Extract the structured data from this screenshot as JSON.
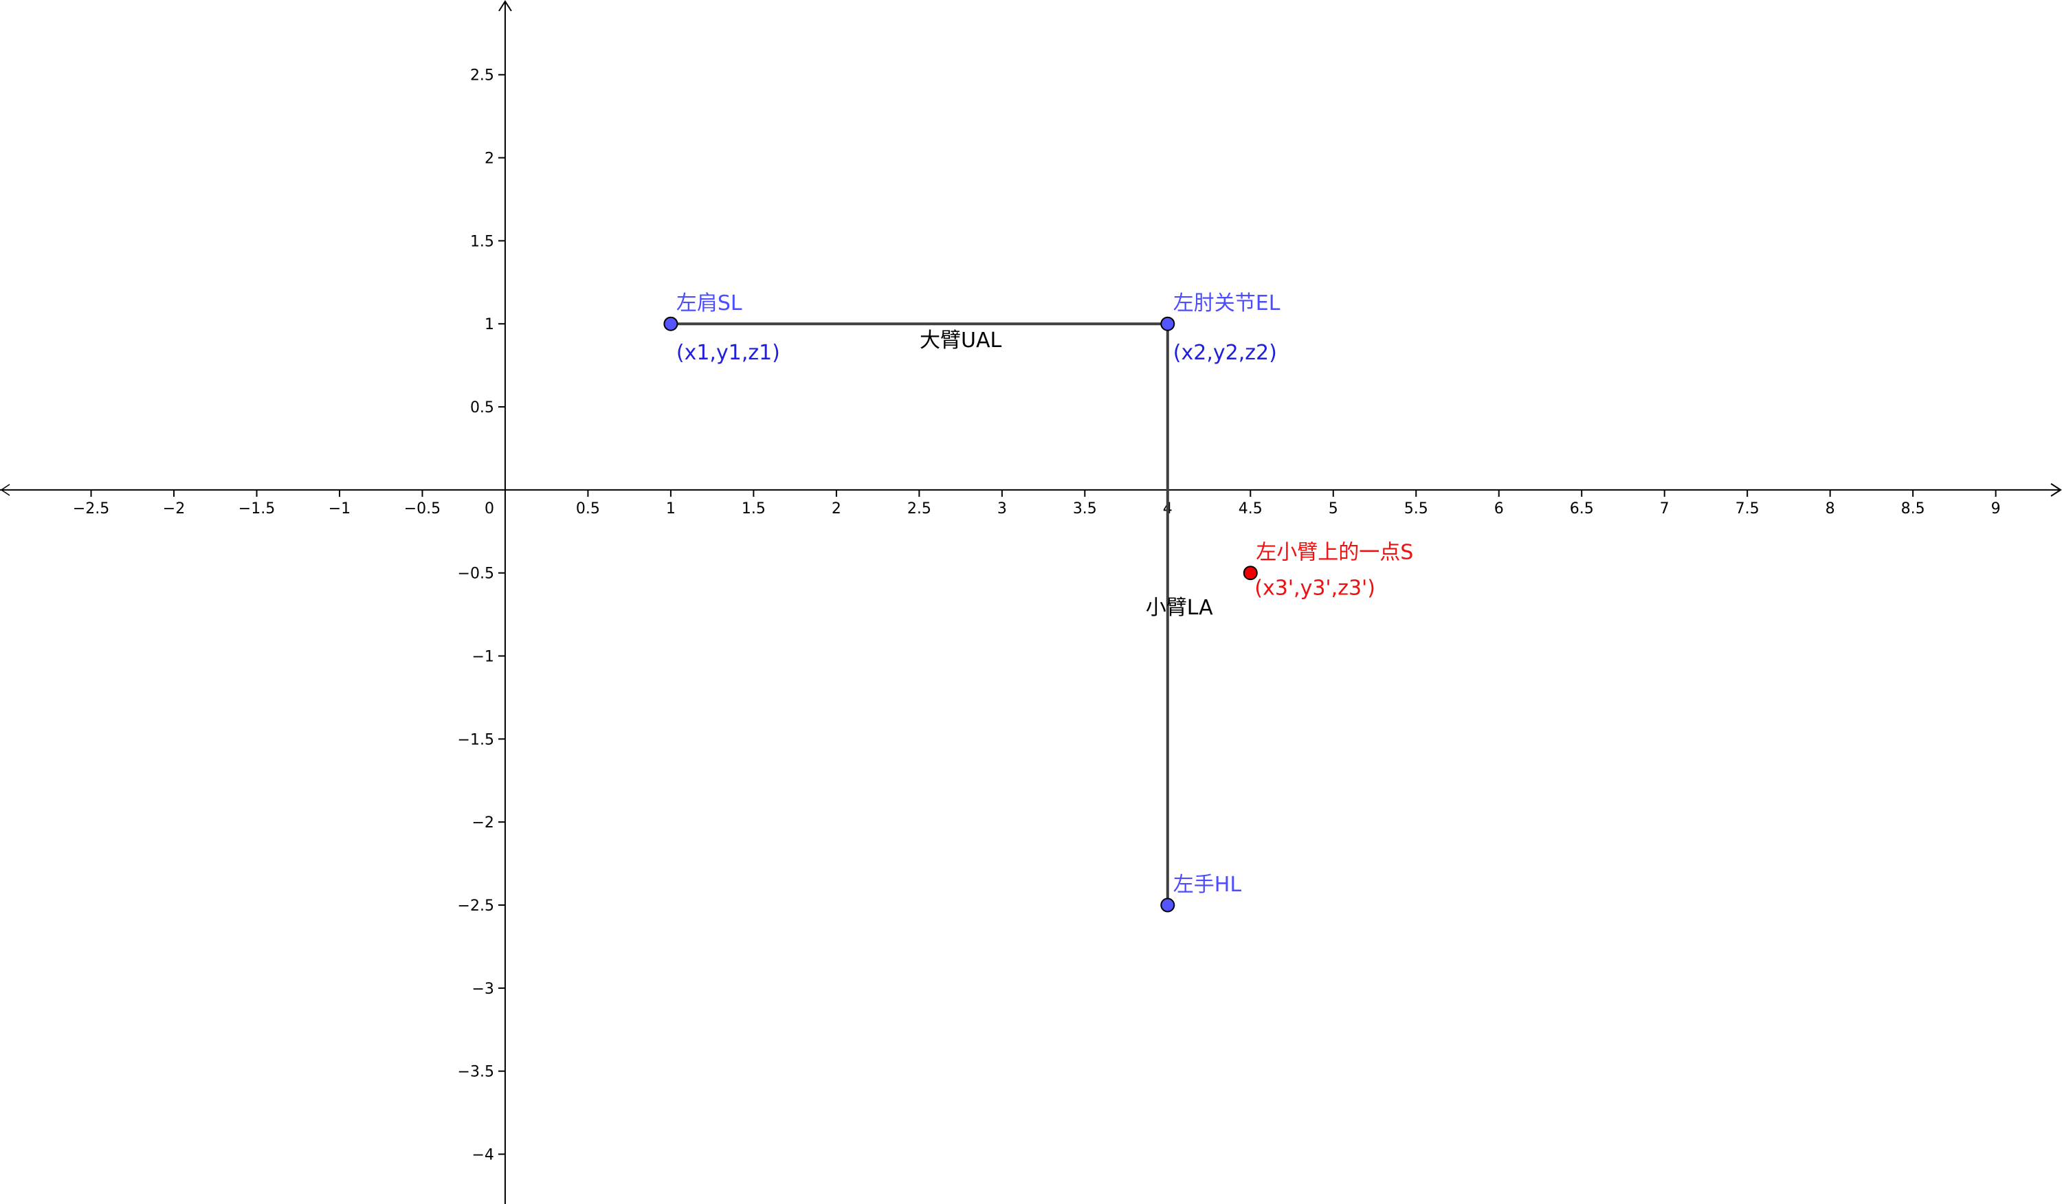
{
  "graph": {
    "x_axis": {
      "range": [
        -3.05,
        9.4
      ],
      "ticks": [
        -2.5,
        -2,
        -1.5,
        -1,
        -0.5,
        0.5,
        1,
        1.5,
        2,
        2.5,
        3,
        3.5,
        4,
        4.5,
        5,
        5.5,
        6,
        6.5,
        7,
        7.5,
        8,
        8.5,
        9
      ],
      "tick_labels": [
        "−2.5",
        "−2",
        "−1.5",
        "−1",
        "−0.5",
        "0.5",
        "1",
        "1.5",
        "2",
        "2.5",
        "3",
        "3.5",
        "4",
        "4.5",
        "5",
        "5.5",
        "6",
        "6.5",
        "7",
        "7.5",
        "8",
        "8.5",
        "9"
      ]
    },
    "y_axis": {
      "range": [
        -4.3,
        2.95
      ],
      "ticks": [
        2.5,
        2,
        1.5,
        1,
        0.5,
        -0.5,
        -1,
        -1.5,
        -2,
        -2.5,
        -3,
        -3.5,
        -4
      ],
      "tick_labels": [
        "2.5",
        "2",
        "1.5",
        "1",
        "0.5",
        "−0.5",
        "−1",
        "−1.5",
        "−2",
        "−2.5",
        "−3",
        "−3.5",
        "−4"
      ]
    },
    "origin_label": "0",
    "colors": {
      "point_blue": "#5555ff",
      "point_red": "#ee0000",
      "segment": "#404040",
      "label_blue_name": "#4d4dff",
      "label_blue_coord": "#1f1fdd",
      "label_red": "#ee1111",
      "axis": "#000000"
    },
    "points": [
      {
        "id": "SL",
        "x": 1,
        "y": 1,
        "name": "左肩SL",
        "coords": "(x1,y1,z1)",
        "color": "blue"
      },
      {
        "id": "EL",
        "x": 4,
        "y": 1,
        "name": "左肘关节EL",
        "coords": "(x2,y2,z2)",
        "color": "blue"
      },
      {
        "id": "HL",
        "x": 4,
        "y": -2.5,
        "name": "左手HL",
        "coords": "",
        "color": "blue"
      },
      {
        "id": "S",
        "x": 4.5,
        "y": -0.5,
        "name": "左小臂上的一点S",
        "coords": "(x3',y3',z3')",
        "color": "red"
      }
    ],
    "segments": [
      {
        "from": "SL",
        "to": "EL",
        "label": "大臂UAL"
      },
      {
        "from": "EL",
        "to": "HL",
        "label": "小臂LA"
      }
    ]
  }
}
